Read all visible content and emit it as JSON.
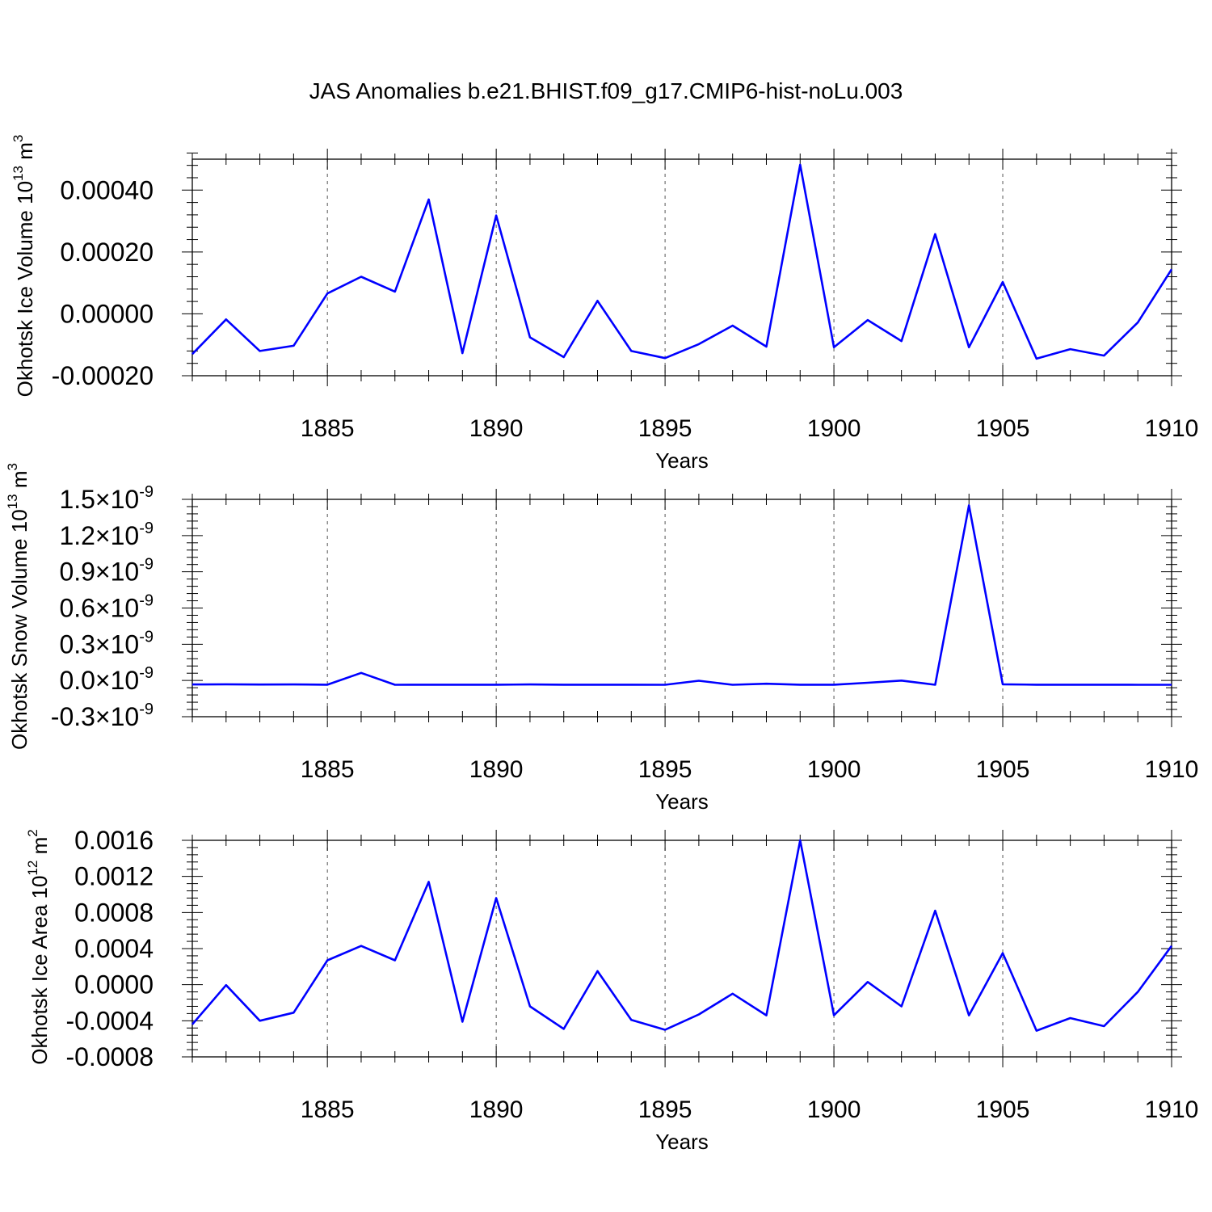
{
  "title": "JAS Anomalies b.e21.BHIST.f09_g17.CMIP6-hist-noLu.003",
  "line_color": "#0000ff",
  "chart_data": [
    {
      "type": "line",
      "ylabel": "Okhotsk Ice Volume 10",
      "ylabel_sup": "13",
      "ylabel_unit": " m",
      "ylabel_unit_sup": "3",
      "xlabel": "Years",
      "xlim": [
        1881,
        1910
      ],
      "ylim": [
        -0.0002,
        0.0005
      ],
      "xticks": [
        1885,
        1890,
        1895,
        1900,
        1905,
        1910
      ],
      "xtick_labels": [
        "1885",
        "1890",
        "1895",
        "1900",
        "1905",
        "1910"
      ],
      "yticks": [
        -0.0002,
        0.0,
        0.0002,
        0.0004
      ],
      "ytick_labels": [
        {
          "mantissa": "-0.00020",
          "exp": ""
        },
        {
          "mantissa": "0.00000",
          "exp": ""
        },
        {
          "mantissa": "0.00020",
          "exp": ""
        },
        {
          "mantissa": "0.00040",
          "exp": ""
        }
      ],
      "x": [
        1881,
        1882,
        1883,
        1884,
        1885,
        1886,
        1887,
        1888,
        1889,
        1890,
        1891,
        1892,
        1893,
        1894,
        1895,
        1896,
        1897,
        1898,
        1899,
        1900,
        1901,
        1902,
        1903,
        1904,
        1905,
        1906,
        1907,
        1908,
        1909,
        1910
      ],
      "y": [
        -0.00013,
        -1.8e-05,
        -0.00012,
        -0.000103,
        6.6e-05,
        0.00012,
        7.2e-05,
        0.00037,
        -0.000127,
        0.000318,
        -7.6e-05,
        -0.00014,
        4.2e-05,
        -0.00012,
        -0.000143,
        -9.8e-05,
        -3.8e-05,
        -0.000106,
        0.000482,
        -0.000108,
        -2e-05,
        -8.8e-05,
        0.000258,
        -0.000108,
        0.000103,
        -0.000145,
        -0.000114,
        -0.000135,
        -2.8e-05,
        0.000144
      ]
    },
    {
      "type": "line",
      "ylabel": "Okhotsk Snow Volume 10",
      "ylabel_sup": "13",
      "ylabel_unit": " m",
      "ylabel_unit_sup": "3",
      "xlabel": "Years",
      "xlim": [
        1881,
        1910
      ],
      "ylim": [
        -3e-10,
        1.5e-09
      ],
      "xticks": [
        1885,
        1890,
        1895,
        1900,
        1905,
        1910
      ],
      "xtick_labels": [
        "1885",
        "1890",
        "1895",
        "1900",
        "1905",
        "1910"
      ],
      "yticks": [
        -3e-10,
        0.0,
        3e-10,
        6e-10,
        9e-10,
        1.2e-09,
        1.5e-09
      ],
      "ytick_labels": [
        {
          "mantissa": "-0.3×10",
          "exp": "-9"
        },
        {
          "mantissa": "0.0×10",
          "exp": "-9"
        },
        {
          "mantissa": "0.3×10",
          "exp": "-9"
        },
        {
          "mantissa": "0.6×10",
          "exp": "-9"
        },
        {
          "mantissa": "0.9×10",
          "exp": "-9"
        },
        {
          "mantissa": "1.2×10",
          "exp": "-9"
        },
        {
          "mantissa": "1.5×10",
          "exp": "-9"
        }
      ],
      "x": [
        1881,
        1882,
        1883,
        1884,
        1885,
        1886,
        1887,
        1888,
        1889,
        1890,
        1891,
        1892,
        1893,
        1894,
        1895,
        1896,
        1897,
        1898,
        1899,
        1900,
        1901,
        1902,
        1903,
        1904,
        1905,
        1906,
        1907,
        1908,
        1909,
        1910
      ],
      "y": [
        -3.3e-11,
        -3.2e-11,
        -3.4e-11,
        -3.3e-11,
        -3.5e-11,
        6.3e-11,
        -3.6e-11,
        -3.5e-11,
        -3.5e-11,
        -3.5e-11,
        -3.3e-11,
        -3.5e-11,
        -3.5e-11,
        -3.5e-11,
        -3.6e-11,
        -2e-12,
        -3.6e-11,
        -2.7e-11,
        -3.5e-11,
        -3.5e-11,
        -1.9e-11,
        -1e-12,
        -3.6e-11,
        1.45e-09,
        -3.2e-11,
        -3.5e-11,
        -3.5e-11,
        -3.5e-11,
        -3.6e-11,
        -3.6e-11
      ]
    },
    {
      "type": "line",
      "ylabel": "Okhotsk Ice Area 10",
      "ylabel_sup": "12",
      "ylabel_unit": " m",
      "ylabel_unit_sup": "2",
      "xlabel": "Years",
      "xlim": [
        1881,
        1910
      ],
      "ylim": [
        -0.0008,
        0.0016
      ],
      "xticks": [
        1885,
        1890,
        1895,
        1900,
        1905,
        1910
      ],
      "xtick_labels": [
        "1885",
        "1890",
        "1895",
        "1900",
        "1905",
        "1910"
      ],
      "yticks": [
        -0.0008,
        -0.0004,
        0.0,
        0.0004,
        0.0008,
        0.0012,
        0.0016
      ],
      "ytick_labels": [
        {
          "mantissa": "-0.0008",
          "exp": ""
        },
        {
          "mantissa": "-0.0004",
          "exp": ""
        },
        {
          "mantissa": "0.0000",
          "exp": ""
        },
        {
          "mantissa": "0.0004",
          "exp": ""
        },
        {
          "mantissa": "0.0008",
          "exp": ""
        },
        {
          "mantissa": "0.0012",
          "exp": ""
        },
        {
          "mantissa": "0.0016",
          "exp": ""
        }
      ],
      "x": [
        1881,
        1882,
        1883,
        1884,
        1885,
        1886,
        1887,
        1888,
        1889,
        1890,
        1891,
        1892,
        1893,
        1894,
        1895,
        1896,
        1897,
        1898,
        1899,
        1900,
        1901,
        1902,
        1903,
        1904,
        1905,
        1906,
        1907,
        1908,
        1909,
        1910
      ],
      "y": [
        -0.00044,
        -5e-06,
        -0.0004,
        -0.00031,
        0.00027,
        0.00043,
        0.00027,
        0.00114,
        -0.00041,
        0.00096,
        -0.00024,
        -0.00049,
        0.00015,
        -0.00039,
        -0.0005,
        -0.00033,
        -0.0001,
        -0.00034,
        0.0016,
        -0.00034,
        3e-05,
        -0.00024,
        0.00082,
        -0.00034,
        0.00035,
        -0.00051,
        -0.00037,
        -0.00046,
        -8e-05,
        0.00043
      ]
    }
  ]
}
